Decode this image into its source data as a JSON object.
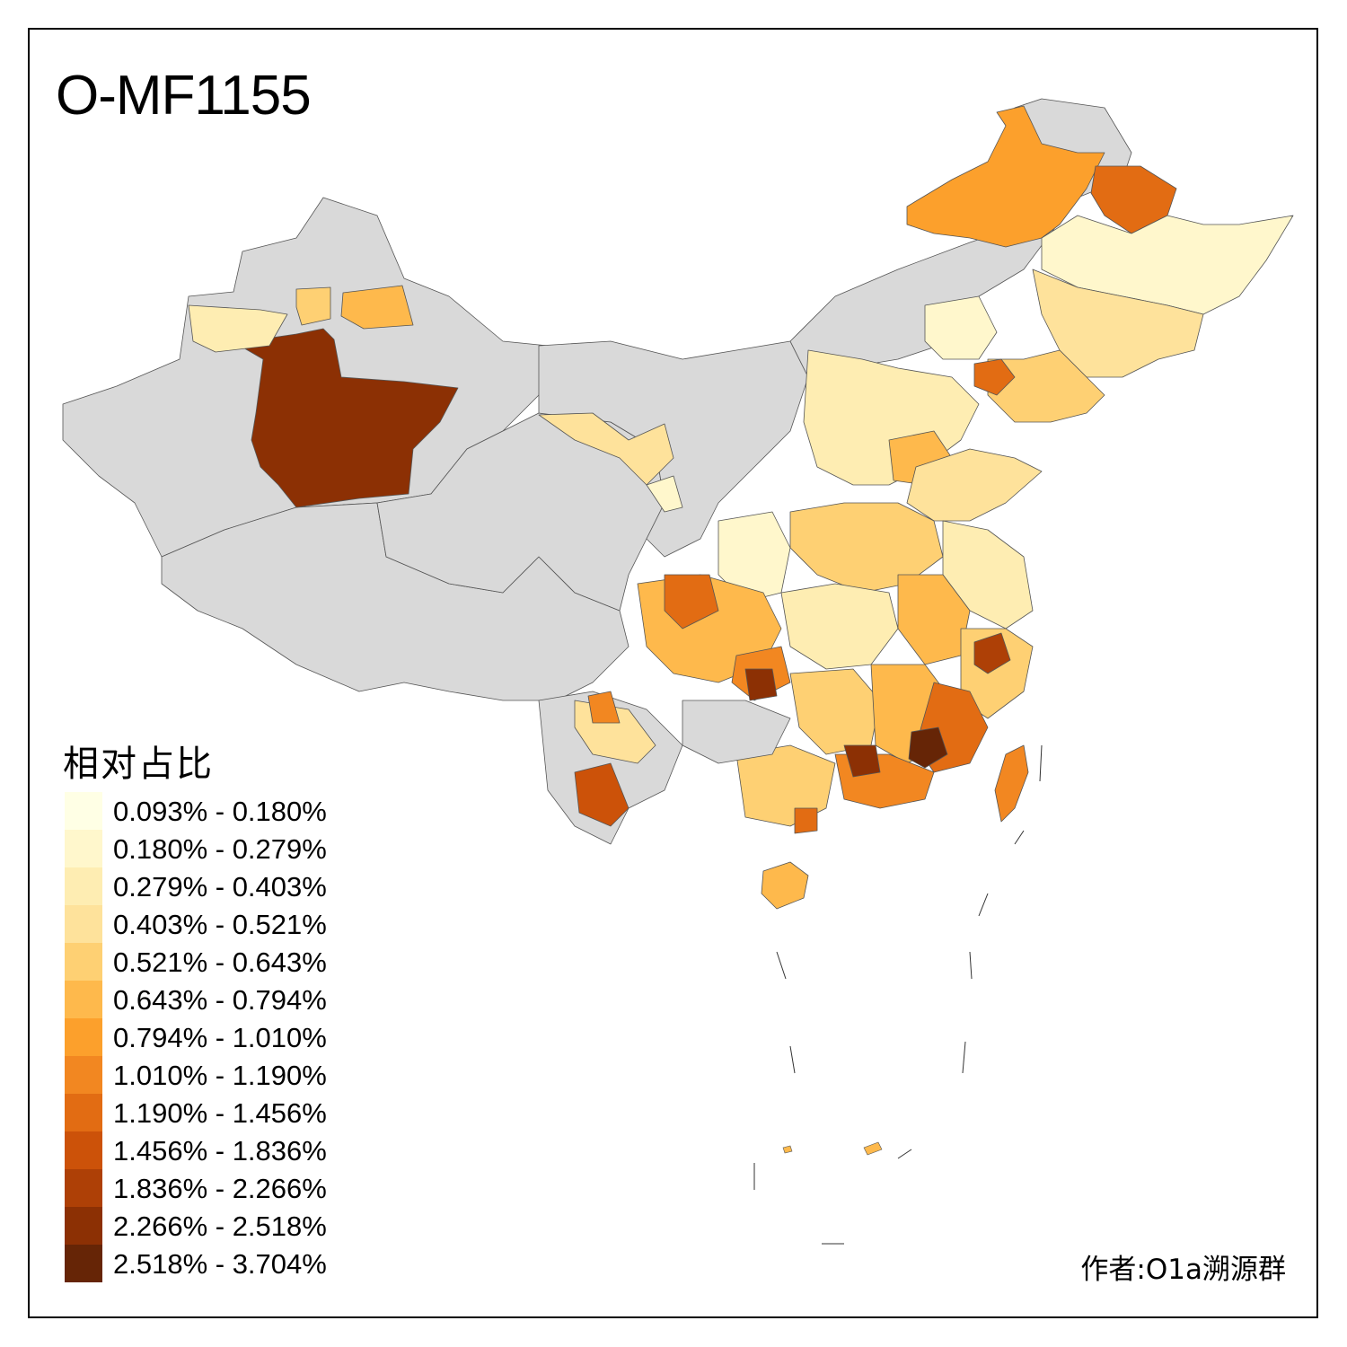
{
  "title": "O-MF1155",
  "legend": {
    "title": "相对占比",
    "bins": [
      {
        "label": "0.093% - 0.180%",
        "color": "#FFFFE5"
      },
      {
        "label": "0.180% - 0.279%",
        "color": "#FFF7CC"
      },
      {
        "label": "0.279% - 0.403%",
        "color": "#FEEDB2"
      },
      {
        "label": "0.403% - 0.521%",
        "color": "#FEE29B"
      },
      {
        "label": "0.521% - 0.643%",
        "color": "#FED073"
      },
      {
        "label": "0.643% - 0.794%",
        "color": "#FEB94C"
      },
      {
        "label": "0.794% - 1.010%",
        "color": "#FCA02C"
      },
      {
        "label": "1.010% - 1.190%",
        "color": "#F28721"
      },
      {
        "label": "1.190% - 1.456%",
        "color": "#E26C13"
      },
      {
        "label": "1.456% - 1.836%",
        "color": "#CC5209"
      },
      {
        "label": "1.836% - 2.266%",
        "color": "#AE4006"
      },
      {
        "label": "2.266% - 2.518%",
        "color": "#8C3004"
      },
      {
        "label": "2.518% - 3.704%",
        "color": "#662506"
      }
    ]
  },
  "no_data_color": "#D9D9D9",
  "author": "作者:O1a溯源群"
}
